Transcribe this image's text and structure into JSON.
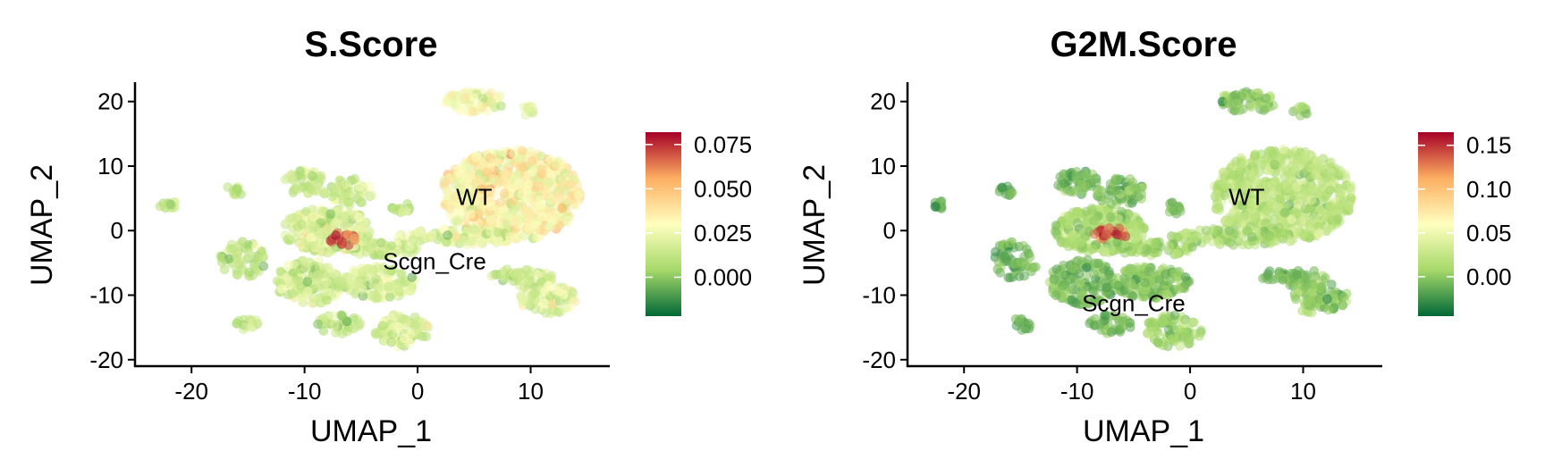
{
  "chart_data": [
    {
      "type": "scatter",
      "title": "S.Score",
      "xlabel": "UMAP_1",
      "ylabel": "UMAP_2",
      "xlim": [
        -25,
        17
      ],
      "ylim": [
        -21,
        23
      ],
      "x_ticks": [
        -20,
        -10,
        0,
        10
      ],
      "x_tick_labels": [
        "-20",
        "-10",
        "0",
        "10"
      ],
      "y_ticks": [
        -20,
        -10,
        0,
        10,
        20
      ],
      "y_tick_labels": [
        "-20",
        "-10",
        "0",
        "10",
        "20"
      ],
      "grid": false,
      "color_scale": {
        "palette": "RdYlGn reversed",
        "colors": [
          "#006837",
          "#a6d96a",
          "#ffffbf",
          "#fdae61",
          "#a50026"
        ],
        "range": [
          -0.022,
          0.082
        ],
        "tick_values": [
          0.0,
          0.025,
          0.05,
          0.075
        ],
        "tick_labels": [
          "0.000",
          "0.025",
          "0.050",
          "0.075"
        ]
      },
      "cluster_labels": [
        {
          "text": "WT",
          "x": 5,
          "y": 4
        },
        {
          "text": "Scgn_Cre",
          "x": 1.5,
          "y": -6
        }
      ],
      "clusters": [
        {
          "x": 5,
          "y": 20,
          "rx": 2.6,
          "ry": 1.7,
          "n": 60,
          "score_mean": 0.028,
          "score_sd": 0.008
        },
        {
          "x": 9.8,
          "y": 18.5,
          "rx": 0.7,
          "ry": 0.8,
          "n": 10,
          "score_mean": 0.022,
          "score_sd": 0.006
        },
        {
          "x": 8.2,
          "y": 5.5,
          "rx": 6.2,
          "ry": 7.2,
          "n": 700,
          "score_mean": 0.032,
          "score_sd": 0.01
        },
        {
          "x": 3.5,
          "y": -1.0,
          "rx": 5.5,
          "ry": 1.3,
          "n": 90,
          "score_mean": 0.02,
          "score_sd": 0.008
        },
        {
          "x": -3.0,
          "y": -2.8,
          "rx": 3.5,
          "ry": 1.1,
          "n": 70,
          "score_mean": 0.015,
          "score_sd": 0.008
        },
        {
          "x": -8.0,
          "y": 0.0,
          "rx": 4.0,
          "ry": 3.5,
          "n": 240,
          "score_mean": 0.02,
          "score_sd": 0.01
        },
        {
          "x": -10.0,
          "y": 7.5,
          "rx": 1.8,
          "ry": 2.0,
          "n": 50,
          "score_mean": 0.012,
          "score_sd": 0.007
        },
        {
          "x": -6.2,
          "y": 6.0,
          "rx": 2.2,
          "ry": 2.2,
          "n": 60,
          "score_mean": 0.015,
          "score_sd": 0.007
        },
        {
          "x": -1.5,
          "y": 3.5,
          "rx": 0.8,
          "ry": 1.0,
          "n": 14,
          "score_mean": 0.01,
          "score_sd": 0.006
        },
        {
          "x": -16.2,
          "y": 6.2,
          "rx": 0.8,
          "ry": 0.8,
          "n": 12,
          "score_mean": 0.008,
          "score_sd": 0.005
        },
        {
          "x": -22.0,
          "y": 4.0,
          "rx": 0.9,
          "ry": 0.6,
          "n": 12,
          "score_mean": 0.01,
          "score_sd": 0.005
        },
        {
          "x": -15.5,
          "y": -4.5,
          "rx": 2.0,
          "ry": 3.0,
          "n": 60,
          "score_mean": 0.012,
          "score_sd": 0.007
        },
        {
          "x": -15.0,
          "y": -14.5,
          "rx": 1.2,
          "ry": 0.9,
          "n": 14,
          "score_mean": 0.01,
          "score_sd": 0.006
        },
        {
          "x": -9.5,
          "y": -8.0,
          "rx": 3.0,
          "ry": 3.5,
          "n": 140,
          "score_mean": 0.015,
          "score_sd": 0.008
        },
        {
          "x": -3.5,
          "y": -8.0,
          "rx": 3.5,
          "ry": 2.5,
          "n": 140,
          "score_mean": 0.017,
          "score_sd": 0.008
        },
        {
          "x": -7.0,
          "y": -14.5,
          "rx": 2.0,
          "ry": 1.5,
          "n": 40,
          "score_mean": 0.013,
          "score_sd": 0.007
        },
        {
          "x": -1.5,
          "y": -15.5,
          "rx": 2.5,
          "ry": 2.5,
          "n": 80,
          "score_mean": 0.018,
          "score_sd": 0.008
        },
        {
          "x": 7.8,
          "y": -7.0,
          "rx": 1.5,
          "ry": 1.0,
          "n": 20,
          "score_mean": 0.012,
          "score_sd": 0.006
        },
        {
          "x": 10.0,
          "y": -7.5,
          "rx": 2.0,
          "ry": 1.5,
          "n": 40,
          "score_mean": 0.015,
          "score_sd": 0.007
        },
        {
          "x": 11.5,
          "y": -10.5,
          "rx": 2.5,
          "ry": 2.5,
          "n": 80,
          "score_mean": 0.02,
          "score_sd": 0.009
        },
        {
          "x": -6.6,
          "y": -1.2,
          "rx": 1.3,
          "ry": 1.2,
          "n": 18,
          "score_mean": 0.07,
          "score_sd": 0.01
        }
      ]
    },
    {
      "type": "scatter",
      "title": "G2M.Score",
      "xlabel": "UMAP_1",
      "ylabel": "UMAP_2",
      "xlim": [
        -25,
        17
      ],
      "ylim": [
        -21,
        23
      ],
      "x_ticks": [
        -20,
        -10,
        0,
        10
      ],
      "x_tick_labels": [
        "-20",
        "-10",
        "0",
        "10"
      ],
      "y_ticks": [
        -20,
        -10,
        0,
        10,
        20
      ],
      "y_tick_labels": [
        "-20",
        "-10",
        "0",
        "10",
        "20"
      ],
      "grid": false,
      "color_scale": {
        "palette": "RdYlGn reversed",
        "colors": [
          "#006837",
          "#a6d96a",
          "#ffffbf",
          "#fdae61",
          "#a50026"
        ],
        "range": [
          -0.045,
          0.165
        ],
        "tick_values": [
          0.0,
          0.05,
          0.1,
          0.15
        ],
        "tick_labels": [
          "0.00",
          "0.05",
          "0.10",
          "0.15"
        ]
      },
      "cluster_labels": [
        {
          "text": "WT",
          "x": 5,
          "y": 4
        },
        {
          "text": "Scgn_Cre",
          "x": -5,
          "y": -12.5
        }
      ],
      "clusters": [
        {
          "x": 5,
          "y": 20,
          "rx": 2.6,
          "ry": 1.7,
          "n": 60,
          "score_mean": 0.0,
          "score_sd": 0.01
        },
        {
          "x": 9.8,
          "y": 18.5,
          "rx": 0.7,
          "ry": 0.8,
          "n": 10,
          "score_mean": 0.0,
          "score_sd": 0.01
        },
        {
          "x": 8.2,
          "y": 5.5,
          "rx": 6.2,
          "ry": 7.2,
          "n": 700,
          "score_mean": 0.02,
          "score_sd": 0.012
        },
        {
          "x": 3.5,
          "y": -1.0,
          "rx": 5.5,
          "ry": 1.3,
          "n": 90,
          "score_mean": 0.01,
          "score_sd": 0.01
        },
        {
          "x": -3.0,
          "y": -2.8,
          "rx": 3.5,
          "ry": 1.1,
          "n": 70,
          "score_mean": 0.01,
          "score_sd": 0.01
        },
        {
          "x": -8.0,
          "y": 0.0,
          "rx": 4.0,
          "ry": 3.5,
          "n": 240,
          "score_mean": 0.01,
          "score_sd": 0.012
        },
        {
          "x": -10.0,
          "y": 7.5,
          "rx": 1.8,
          "ry": 2.0,
          "n": 50,
          "score_mean": -0.01,
          "score_sd": 0.01
        },
        {
          "x": -6.2,
          "y": 6.0,
          "rx": 2.2,
          "ry": 2.2,
          "n": 60,
          "score_mean": -0.005,
          "score_sd": 0.01
        },
        {
          "x": -1.5,
          "y": 3.5,
          "rx": 0.8,
          "ry": 1.0,
          "n": 14,
          "score_mean": -0.01,
          "score_sd": 0.008
        },
        {
          "x": -16.2,
          "y": 6.2,
          "rx": 0.8,
          "ry": 0.8,
          "n": 12,
          "score_mean": -0.015,
          "score_sd": 0.008
        },
        {
          "x": -22.0,
          "y": 4.0,
          "rx": 0.9,
          "ry": 0.6,
          "n": 12,
          "score_mean": -0.015,
          "score_sd": 0.008
        },
        {
          "x": -15.5,
          "y": -4.5,
          "rx": 2.0,
          "ry": 3.0,
          "n": 60,
          "score_mean": -0.01,
          "score_sd": 0.01
        },
        {
          "x": -15.0,
          "y": -14.5,
          "rx": 1.2,
          "ry": 0.9,
          "n": 14,
          "score_mean": -0.01,
          "score_sd": 0.008
        },
        {
          "x": -9.5,
          "y": -8.0,
          "rx": 3.0,
          "ry": 3.5,
          "n": 140,
          "score_mean": -0.005,
          "score_sd": 0.01
        },
        {
          "x": -3.5,
          "y": -8.0,
          "rx": 3.5,
          "ry": 2.5,
          "n": 140,
          "score_mean": 0.0,
          "score_sd": 0.01
        },
        {
          "x": -7.0,
          "y": -14.5,
          "rx": 2.0,
          "ry": 1.5,
          "n": 40,
          "score_mean": -0.005,
          "score_sd": 0.01
        },
        {
          "x": -1.5,
          "y": -15.5,
          "rx": 2.5,
          "ry": 2.5,
          "n": 80,
          "score_mean": 0.005,
          "score_sd": 0.01
        },
        {
          "x": 7.8,
          "y": -7.0,
          "rx": 1.5,
          "ry": 1.0,
          "n": 20,
          "score_mean": -0.01,
          "score_sd": 0.008
        },
        {
          "x": 10.0,
          "y": -7.5,
          "rx": 2.0,
          "ry": 1.5,
          "n": 40,
          "score_mean": -0.005,
          "score_sd": 0.008
        },
        {
          "x": 11.5,
          "y": -10.5,
          "rx": 2.5,
          "ry": 2.5,
          "n": 80,
          "score_mean": 0.0,
          "score_sd": 0.01
        },
        {
          "x": -7.0,
          "y": -0.5,
          "rx": 1.5,
          "ry": 1.0,
          "n": 20,
          "score_mean": 0.13,
          "score_sd": 0.02
        }
      ]
    }
  ]
}
